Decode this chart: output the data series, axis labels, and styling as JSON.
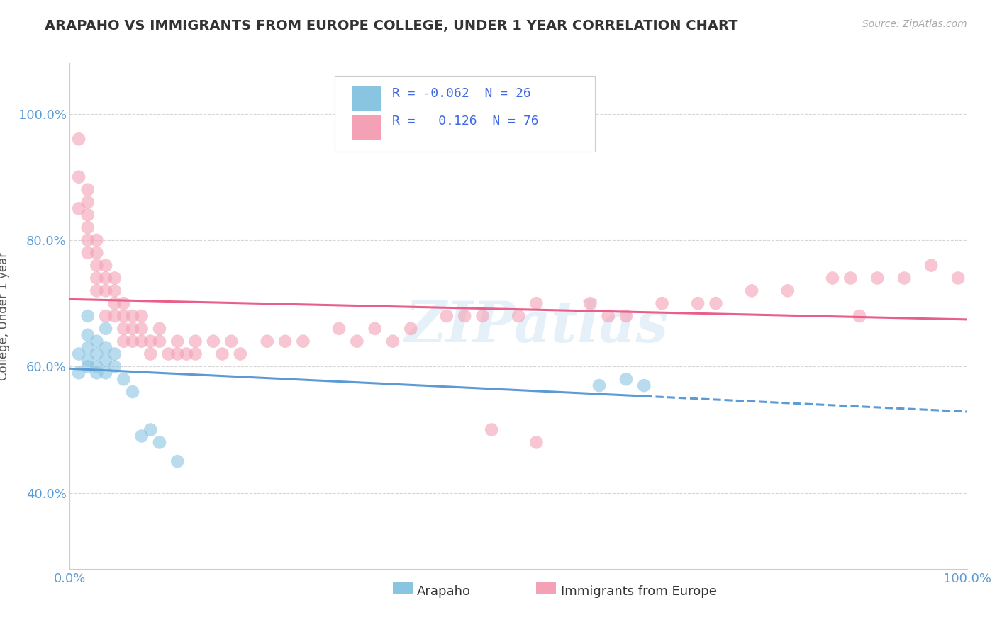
{
  "title": "ARAPAHO VS IMMIGRANTS FROM EUROPE COLLEGE, UNDER 1 YEAR CORRELATION CHART",
  "source": "Source: ZipAtlas.com",
  "ylabel": "College, Under 1 year",
  "xlim": [
    0,
    1
  ],
  "ylim": [
    0.28,
    1.08
  ],
  "x_tick_labels": [
    "0.0%",
    "100.0%"
  ],
  "y_tick_labels": [
    "40.0%",
    "60.0%",
    "80.0%",
    "100.0%"
  ],
  "y_tick_positions": [
    0.4,
    0.6,
    0.8,
    1.0
  ],
  "watermark": "ZIPatlas",
  "color_blue": "#89c4e1",
  "color_pink": "#f4a0b5",
  "color_blue_line": "#5b9bd5",
  "color_pink_line": "#e8608a",
  "color_tick": "#5b9bd5",
  "background": "#ffffff",
  "arapaho_x": [
    0.01,
    0.01,
    0.02,
    0.02,
    0.02,
    0.02,
    0.02,
    0.03,
    0.03,
    0.03,
    0.03,
    0.04,
    0.04,
    0.04,
    0.04,
    0.05,
    0.05,
    0.06,
    0.07,
    0.08,
    0.09,
    0.1,
    0.12,
    0.59,
    0.62,
    0.64
  ],
  "arapaho_y": [
    0.59,
    0.62,
    0.6,
    0.61,
    0.63,
    0.65,
    0.68,
    0.59,
    0.6,
    0.62,
    0.64,
    0.59,
    0.61,
    0.63,
    0.66,
    0.6,
    0.62,
    0.58,
    0.56,
    0.49,
    0.5,
    0.48,
    0.45,
    0.57,
    0.58,
    0.57
  ],
  "europe_x": [
    0.01,
    0.01,
    0.01,
    0.02,
    0.02,
    0.02,
    0.02,
    0.02,
    0.02,
    0.03,
    0.03,
    0.03,
    0.03,
    0.03,
    0.04,
    0.04,
    0.04,
    0.04,
    0.05,
    0.05,
    0.05,
    0.05,
    0.06,
    0.06,
    0.06,
    0.06,
    0.07,
    0.07,
    0.07,
    0.08,
    0.08,
    0.08,
    0.09,
    0.09,
    0.1,
    0.1,
    0.11,
    0.12,
    0.12,
    0.13,
    0.14,
    0.14,
    0.16,
    0.17,
    0.18,
    0.19,
    0.22,
    0.24,
    0.26,
    0.3,
    0.32,
    0.34,
    0.36,
    0.38,
    0.42,
    0.44,
    0.46,
    0.5,
    0.52,
    0.58,
    0.6,
    0.62,
    0.66,
    0.7,
    0.72,
    0.76,
    0.8,
    0.85,
    0.87,
    0.9,
    0.93,
    0.96,
    0.99,
    0.47,
    0.52,
    0.88
  ],
  "europe_y": [
    0.85,
    0.9,
    0.96,
    0.78,
    0.8,
    0.82,
    0.84,
    0.86,
    0.88,
    0.72,
    0.74,
    0.76,
    0.78,
    0.8,
    0.68,
    0.72,
    0.74,
    0.76,
    0.68,
    0.7,
    0.72,
    0.74,
    0.64,
    0.66,
    0.68,
    0.7,
    0.64,
    0.66,
    0.68,
    0.64,
    0.66,
    0.68,
    0.62,
    0.64,
    0.64,
    0.66,
    0.62,
    0.62,
    0.64,
    0.62,
    0.62,
    0.64,
    0.64,
    0.62,
    0.64,
    0.62,
    0.64,
    0.64,
    0.64,
    0.66,
    0.64,
    0.66,
    0.64,
    0.66,
    0.68,
    0.68,
    0.68,
    0.68,
    0.7,
    0.7,
    0.68,
    0.68,
    0.7,
    0.7,
    0.7,
    0.72,
    0.72,
    0.74,
    0.74,
    0.74,
    0.74,
    0.76,
    0.74,
    0.5,
    0.48,
    0.68
  ]
}
